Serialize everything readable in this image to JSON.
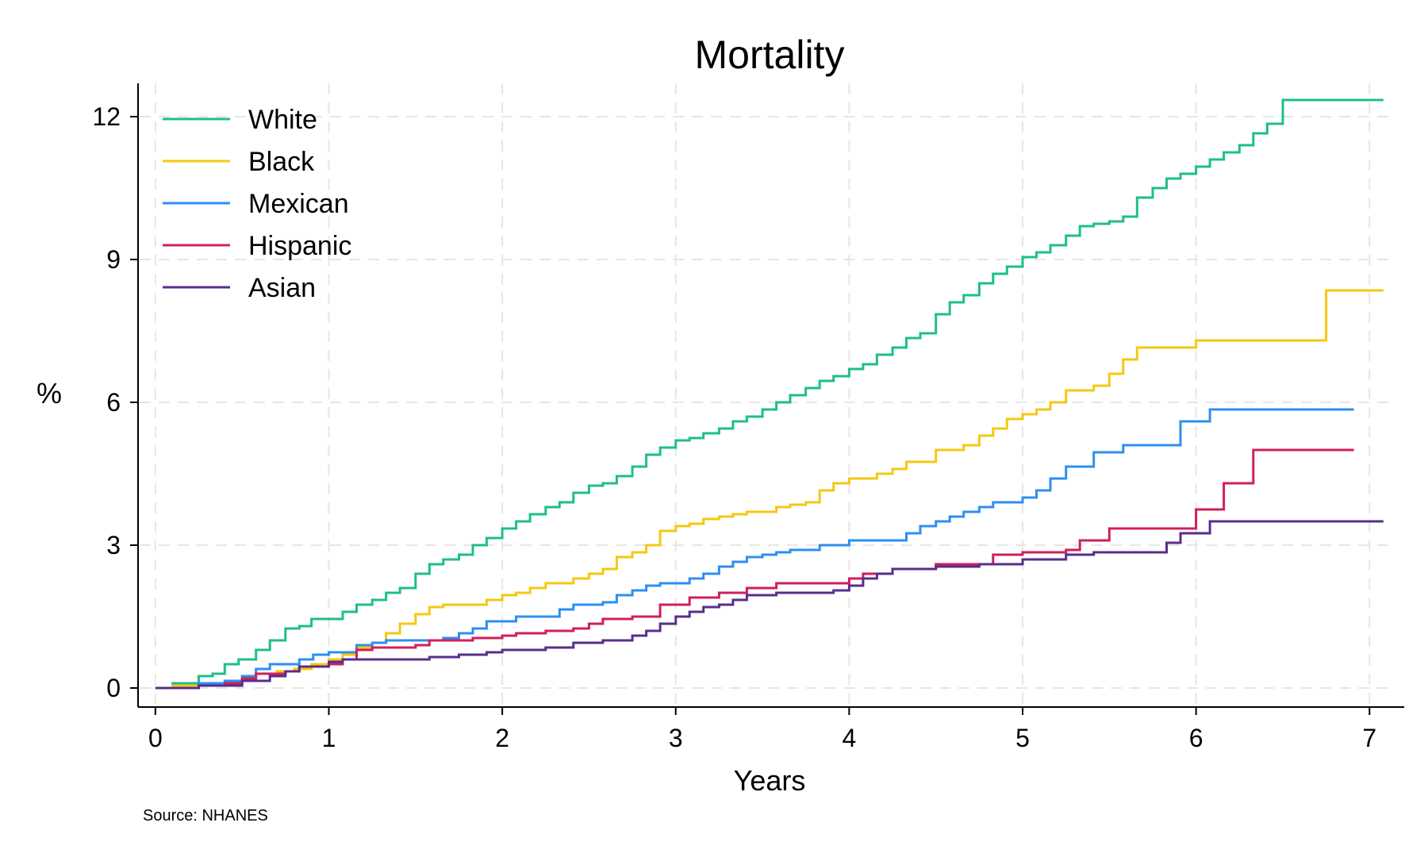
{
  "chart_data": {
    "type": "line",
    "title": "Mortality",
    "xlabel": "Years",
    "ylabel": "%",
    "source_note": "Source: NHANES",
    "xlim": [
      -0.1,
      7.2
    ],
    "ylim": [
      -0.4,
      12.7
    ],
    "x_ticks": [
      0,
      1,
      2,
      3,
      4,
      5,
      6,
      7
    ],
    "y_ticks": [
      0,
      3,
      6,
      9,
      12
    ],
    "grid": true,
    "legend_position": "top-left",
    "step": true,
    "series": [
      {
        "name": "White",
        "color": "#1ebe8c",
        "points": [
          [
            0,
            0
          ],
          [
            0.1,
            0.1
          ],
          [
            0.25,
            0.25
          ],
          [
            0.33,
            0.3
          ],
          [
            0.4,
            0.5
          ],
          [
            0.48,
            0.6
          ],
          [
            0.58,
            0.8
          ],
          [
            0.66,
            1.0
          ],
          [
            0.75,
            1.25
          ],
          [
            0.83,
            1.3
          ],
          [
            0.9,
            1.45
          ],
          [
            1.0,
            1.45
          ],
          [
            1.08,
            1.6
          ],
          [
            1.16,
            1.75
          ],
          [
            1.25,
            1.85
          ],
          [
            1.33,
            2.0
          ],
          [
            1.41,
            2.1
          ],
          [
            1.5,
            2.4
          ],
          [
            1.58,
            2.6
          ],
          [
            1.66,
            2.7
          ],
          [
            1.75,
            2.8
          ],
          [
            1.83,
            3.0
          ],
          [
            1.91,
            3.15
          ],
          [
            2.0,
            3.35
          ],
          [
            2.08,
            3.5
          ],
          [
            2.16,
            3.65
          ],
          [
            2.25,
            3.8
          ],
          [
            2.33,
            3.9
          ],
          [
            2.41,
            4.1
          ],
          [
            2.5,
            4.25
          ],
          [
            2.58,
            4.3
          ],
          [
            2.66,
            4.45
          ],
          [
            2.75,
            4.65
          ],
          [
            2.83,
            4.9
          ],
          [
            2.91,
            5.05
          ],
          [
            3.0,
            5.2
          ],
          [
            3.08,
            5.25
          ],
          [
            3.16,
            5.35
          ],
          [
            3.25,
            5.45
          ],
          [
            3.33,
            5.6
          ],
          [
            3.41,
            5.7
          ],
          [
            3.5,
            5.85
          ],
          [
            3.58,
            6.0
          ],
          [
            3.66,
            6.15
          ],
          [
            3.75,
            6.3
          ],
          [
            3.83,
            6.45
          ],
          [
            3.91,
            6.55
          ],
          [
            4.0,
            6.7
          ],
          [
            4.08,
            6.8
          ],
          [
            4.16,
            7.0
          ],
          [
            4.25,
            7.15
          ],
          [
            4.33,
            7.35
          ],
          [
            4.41,
            7.45
          ],
          [
            4.5,
            7.85
          ],
          [
            4.58,
            8.1
          ],
          [
            4.66,
            8.25
          ],
          [
            4.75,
            8.5
          ],
          [
            4.83,
            8.7
          ],
          [
            4.91,
            8.85
          ],
          [
            5.0,
            9.05
          ],
          [
            5.08,
            9.15
          ],
          [
            5.16,
            9.3
          ],
          [
            5.25,
            9.5
          ],
          [
            5.33,
            9.7
          ],
          [
            5.41,
            9.75
          ],
          [
            5.5,
            9.8
          ],
          [
            5.58,
            9.9
          ],
          [
            5.66,
            10.3
          ],
          [
            5.75,
            10.5
          ],
          [
            5.83,
            10.7
          ],
          [
            5.91,
            10.8
          ],
          [
            6.0,
            10.95
          ],
          [
            6.08,
            11.1
          ],
          [
            6.16,
            11.25
          ],
          [
            6.25,
            11.4
          ],
          [
            6.33,
            11.65
          ],
          [
            6.41,
            11.85
          ],
          [
            6.5,
            12.35
          ],
          [
            7.08,
            12.35
          ]
        ]
      },
      {
        "name": "Black",
        "color": "#f5c810",
        "points": [
          [
            0,
            0
          ],
          [
            0.1,
            0.05
          ],
          [
            0.25,
            0.1
          ],
          [
            0.4,
            0.15
          ],
          [
            0.5,
            0.25
          ],
          [
            0.58,
            0.3
          ],
          [
            0.7,
            0.35
          ],
          [
            0.8,
            0.4
          ],
          [
            0.9,
            0.5
          ],
          [
            1.0,
            0.6
          ],
          [
            1.08,
            0.7
          ],
          [
            1.16,
            0.85
          ],
          [
            1.25,
            0.95
          ],
          [
            1.33,
            1.15
          ],
          [
            1.41,
            1.35
          ],
          [
            1.5,
            1.55
          ],
          [
            1.58,
            1.7
          ],
          [
            1.66,
            1.75
          ],
          [
            1.75,
            1.75
          ],
          [
            1.91,
            1.85
          ],
          [
            2.0,
            1.95
          ],
          [
            2.08,
            2.0
          ],
          [
            2.16,
            2.1
          ],
          [
            2.25,
            2.2
          ],
          [
            2.41,
            2.3
          ],
          [
            2.5,
            2.4
          ],
          [
            2.58,
            2.5
          ],
          [
            2.66,
            2.75
          ],
          [
            2.75,
            2.85
          ],
          [
            2.83,
            3.0
          ],
          [
            2.91,
            3.3
          ],
          [
            3.0,
            3.4
          ],
          [
            3.08,
            3.45
          ],
          [
            3.16,
            3.55
          ],
          [
            3.25,
            3.6
          ],
          [
            3.33,
            3.65
          ],
          [
            3.41,
            3.7
          ],
          [
            3.58,
            3.8
          ],
          [
            3.66,
            3.85
          ],
          [
            3.75,
            3.9
          ],
          [
            3.83,
            4.15
          ],
          [
            3.91,
            4.3
          ],
          [
            4.0,
            4.4
          ],
          [
            4.16,
            4.5
          ],
          [
            4.25,
            4.6
          ],
          [
            4.33,
            4.75
          ],
          [
            4.5,
            5.0
          ],
          [
            4.66,
            5.1
          ],
          [
            4.75,
            5.3
          ],
          [
            4.83,
            5.45
          ],
          [
            4.91,
            5.65
          ],
          [
            5.0,
            5.75
          ],
          [
            5.08,
            5.85
          ],
          [
            5.16,
            6.0
          ],
          [
            5.25,
            6.25
          ],
          [
            5.41,
            6.35
          ],
          [
            5.5,
            6.6
          ],
          [
            5.58,
            6.9
          ],
          [
            5.66,
            7.15
          ],
          [
            6.0,
            7.3
          ],
          [
            6.75,
            8.35
          ],
          [
            7.08,
            8.35
          ]
        ]
      },
      {
        "name": "Mexican",
        "color": "#2d8ff0",
        "points": [
          [
            0,
            0
          ],
          [
            0.25,
            0.1
          ],
          [
            0.4,
            0.15
          ],
          [
            0.5,
            0.25
          ],
          [
            0.58,
            0.4
          ],
          [
            0.66,
            0.5
          ],
          [
            0.83,
            0.6
          ],
          [
            0.91,
            0.7
          ],
          [
            1.0,
            0.75
          ],
          [
            1.16,
            0.9
          ],
          [
            1.25,
            0.95
          ],
          [
            1.33,
            1.0
          ],
          [
            1.66,
            1.05
          ],
          [
            1.75,
            1.15
          ],
          [
            1.83,
            1.25
          ],
          [
            1.91,
            1.4
          ],
          [
            2.08,
            1.5
          ],
          [
            2.33,
            1.65
          ],
          [
            2.41,
            1.75
          ],
          [
            2.58,
            1.8
          ],
          [
            2.66,
            1.95
          ],
          [
            2.75,
            2.05
          ],
          [
            2.83,
            2.15
          ],
          [
            2.91,
            2.2
          ],
          [
            3.08,
            2.3
          ],
          [
            3.16,
            2.4
          ],
          [
            3.25,
            2.55
          ],
          [
            3.33,
            2.65
          ],
          [
            3.41,
            2.75
          ],
          [
            3.5,
            2.8
          ],
          [
            3.58,
            2.85
          ],
          [
            3.66,
            2.9
          ],
          [
            3.83,
            3.0
          ],
          [
            4.0,
            3.1
          ],
          [
            4.33,
            3.25
          ],
          [
            4.41,
            3.4
          ],
          [
            4.5,
            3.5
          ],
          [
            4.58,
            3.6
          ],
          [
            4.66,
            3.7
          ],
          [
            4.75,
            3.8
          ],
          [
            4.83,
            3.9
          ],
          [
            5.0,
            4.0
          ],
          [
            5.08,
            4.15
          ],
          [
            5.16,
            4.4
          ],
          [
            5.25,
            4.65
          ],
          [
            5.41,
            4.95
          ],
          [
            5.58,
            5.1
          ],
          [
            5.91,
            5.6
          ],
          [
            6.08,
            5.85
          ],
          [
            6.91,
            5.85
          ]
        ]
      },
      {
        "name": "Hispanic",
        "color": "#d11f5c",
        "points": [
          [
            0,
            0
          ],
          [
            0.25,
            0.05
          ],
          [
            0.4,
            0.1
          ],
          [
            0.5,
            0.2
          ],
          [
            0.58,
            0.3
          ],
          [
            0.75,
            0.35
          ],
          [
            0.83,
            0.45
          ],
          [
            1.0,
            0.5
          ],
          [
            1.08,
            0.6
          ],
          [
            1.16,
            0.8
          ],
          [
            1.25,
            0.85
          ],
          [
            1.5,
            0.9
          ],
          [
            1.58,
            1.0
          ],
          [
            1.83,
            1.05
          ],
          [
            2.0,
            1.1
          ],
          [
            2.08,
            1.15
          ],
          [
            2.25,
            1.2
          ],
          [
            2.41,
            1.25
          ],
          [
            2.5,
            1.35
          ],
          [
            2.58,
            1.45
          ],
          [
            2.75,
            1.5
          ],
          [
            2.91,
            1.75
          ],
          [
            3.08,
            1.9
          ],
          [
            3.25,
            2.0
          ],
          [
            3.41,
            2.1
          ],
          [
            3.58,
            2.2
          ],
          [
            4.0,
            2.3
          ],
          [
            4.08,
            2.4
          ],
          [
            4.25,
            2.5
          ],
          [
            4.5,
            2.6
          ],
          [
            4.83,
            2.8
          ],
          [
            5.0,
            2.85
          ],
          [
            5.25,
            2.9
          ],
          [
            5.33,
            3.1
          ],
          [
            5.5,
            3.35
          ],
          [
            6.0,
            3.75
          ],
          [
            6.16,
            4.3
          ],
          [
            6.33,
            5.0
          ],
          [
            6.91,
            5.0
          ]
        ]
      },
      {
        "name": "Asian",
        "color": "#5a2d8c",
        "points": [
          [
            0,
            0
          ],
          [
            0.25,
            0.05
          ],
          [
            0.5,
            0.15
          ],
          [
            0.66,
            0.25
          ],
          [
            0.75,
            0.35
          ],
          [
            0.83,
            0.45
          ],
          [
            1.0,
            0.55
          ],
          [
            1.08,
            0.6
          ],
          [
            1.58,
            0.65
          ],
          [
            1.75,
            0.7
          ],
          [
            1.91,
            0.75
          ],
          [
            2.0,
            0.8
          ],
          [
            2.25,
            0.85
          ],
          [
            2.41,
            0.95
          ],
          [
            2.58,
            1.0
          ],
          [
            2.75,
            1.1
          ],
          [
            2.83,
            1.2
          ],
          [
            2.91,
            1.35
          ],
          [
            3.0,
            1.5
          ],
          [
            3.08,
            1.6
          ],
          [
            3.16,
            1.7
          ],
          [
            3.25,
            1.75
          ],
          [
            3.33,
            1.85
          ],
          [
            3.41,
            1.95
          ],
          [
            3.58,
            2.0
          ],
          [
            3.91,
            2.05
          ],
          [
            4.0,
            2.15
          ],
          [
            4.08,
            2.3
          ],
          [
            4.16,
            2.4
          ],
          [
            4.25,
            2.5
          ],
          [
            4.5,
            2.55
          ],
          [
            4.75,
            2.6
          ],
          [
            5.0,
            2.7
          ],
          [
            5.25,
            2.8
          ],
          [
            5.41,
            2.85
          ],
          [
            5.83,
            3.05
          ],
          [
            5.91,
            3.25
          ],
          [
            6.08,
            3.5
          ],
          [
            7.08,
            3.5
          ]
        ]
      }
    ]
  }
}
